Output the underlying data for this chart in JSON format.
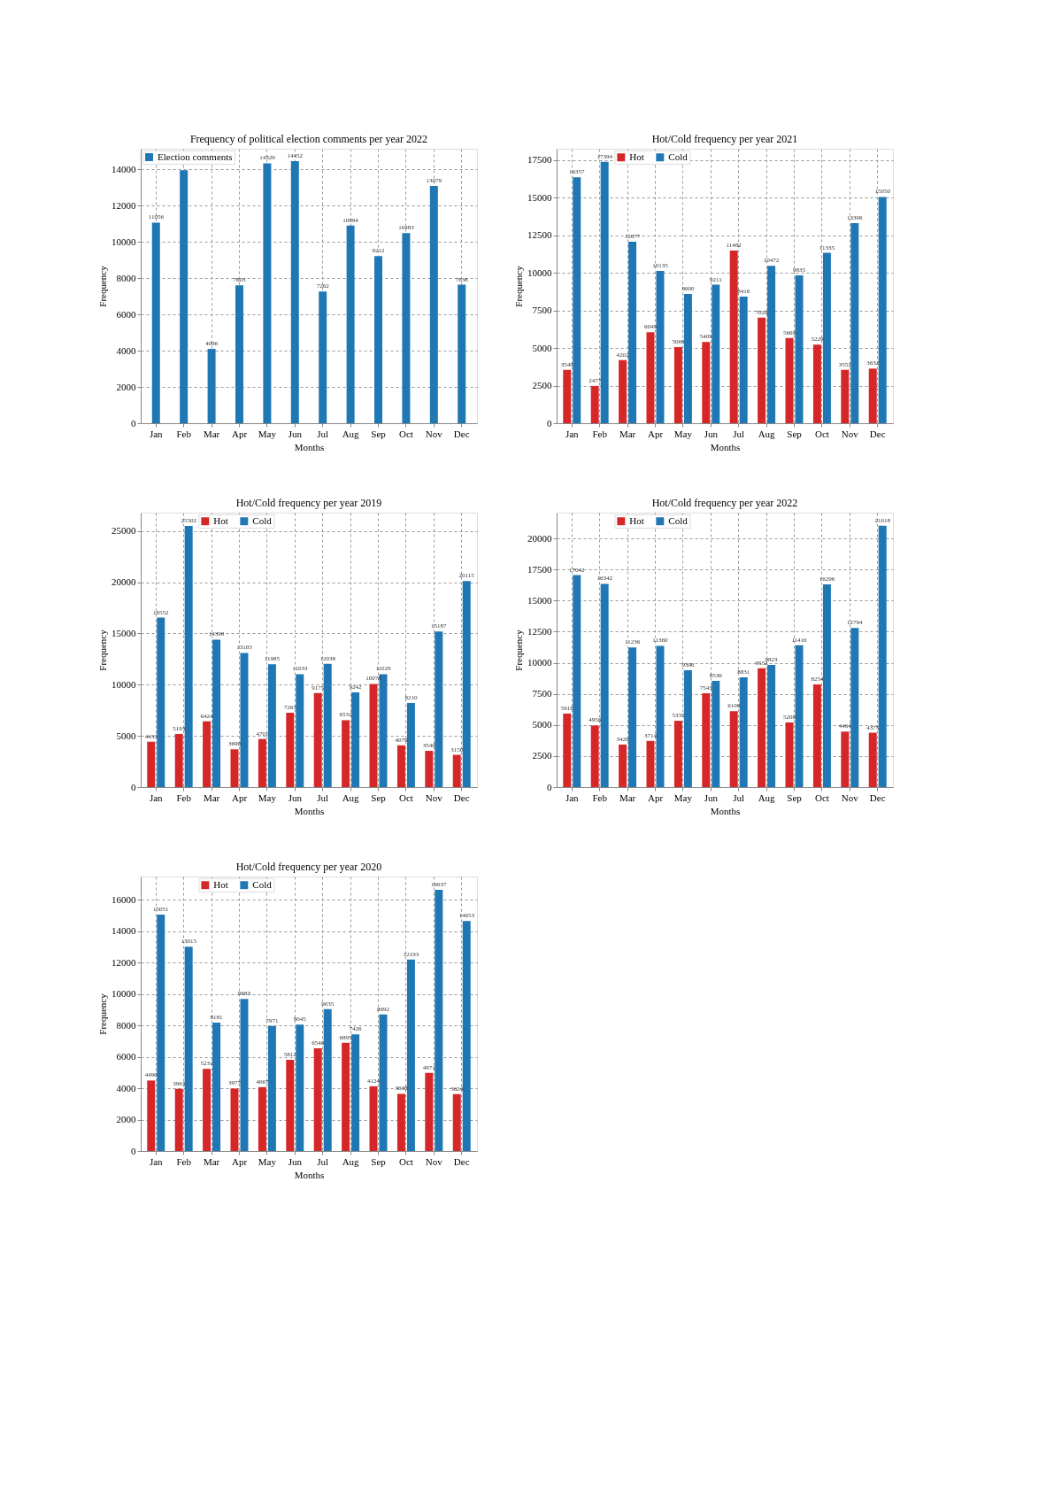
{
  "chart_data": [
    {
      "type": "bar",
      "title": "Frequency of political election comments per year 2022",
      "xlabel": "Months",
      "ylabel": "Frequency",
      "categories": [
        "Jan",
        "Feb",
        "Mar",
        "Apr",
        "May",
        "Jun",
        "Jul",
        "Aug",
        "Sep",
        "Oct",
        "Nov",
        "Dec"
      ],
      "series": [
        {
          "name": "Election comments",
          "color": "#1f77b4",
          "values": [
            11056,
            13950,
            4096,
            7603,
            14329,
            14452,
            7262,
            10894,
            9212,
            10483,
            13079,
            7638
          ],
          "value_labels": [
            "11056",
            null,
            "4096",
            "7603",
            "14329",
            "14452",
            "7262",
            "10894",
            "9212",
            "10483",
            "13079",
            "7638"
          ]
        }
      ],
      "ylim": [
        0,
        15130
      ],
      "yticks": [
        0,
        2000,
        4000,
        6000,
        8000,
        10000,
        12000,
        14000
      ],
      "grid": true,
      "legend": "top left"
    },
    {
      "type": "bar",
      "title": "Hot/Cold frequency per year 2021",
      "xlabel": "Months",
      "ylabel": "Frequency",
      "categories": [
        "Jan",
        "Feb",
        "Mar",
        "Apr",
        "May",
        "Jun",
        "Jul",
        "Aug",
        "Sep",
        "Oct",
        "Nov",
        "Dec"
      ],
      "series": [
        {
          "name": "Hot",
          "color": "#d62728",
          "values": [
            3549,
            2477,
            4202,
            6049,
            5069,
            5409,
            11482,
            7029,
            5669,
            5229,
            3552,
            3632
          ]
        },
        {
          "name": "Cold",
          "color": "#1f77b4",
          "values": [
            16357,
            17394,
            12077,
            10135,
            8600,
            9211,
            8416,
            10472,
            9835,
            11335,
            13306,
            15050
          ]
        }
      ],
      "ylim": [
        0,
        18260
      ],
      "yticks": [
        0,
        2500,
        5000,
        7500,
        10000,
        12500,
        15000,
        17500
      ],
      "grid": true,
      "legend": "top left",
      "data_labels": true
    },
    {
      "type": "bar",
      "title": "Hot/Cold frequency per year 2019",
      "xlabel": "Months",
      "ylabel": "Frequency",
      "categories": [
        "Jan",
        "Feb",
        "Mar",
        "Apr",
        "May",
        "Jun",
        "Jul",
        "Aug",
        "Sep",
        "Oct",
        "Nov",
        "Dec"
      ],
      "series": [
        {
          "name": "Hot",
          "color": "#d62728",
          "values": [
            4433,
            5193,
            6424,
            3690,
            4701,
            7263,
            9175,
            6531,
            10078,
            4079,
            3540,
            3150
          ]
        },
        {
          "name": "Cold",
          "color": "#1f77b4",
          "values": [
            16552,
            25502,
            14398,
            13103,
            11985,
            11033,
            12038,
            9242,
            11029,
            8210,
            15187,
            20115
          ]
        }
      ],
      "ylim": [
        0,
        26800
      ],
      "yticks": [
        0,
        5000,
        10000,
        15000,
        20000,
        25000
      ],
      "grid": true,
      "legend": "top left",
      "data_labels": true
    },
    {
      "type": "bar",
      "title": "Hot/Cold frequency per year 2022",
      "xlabel": "Months",
      "ylabel": "Frequency",
      "categories": [
        "Jan",
        "Feb",
        "Mar",
        "Apr",
        "May",
        "Jun",
        "Jul",
        "Aug",
        "Sep",
        "Oct",
        "Nov",
        "Dec"
      ],
      "series": [
        {
          "name": "Hot",
          "color": "#d62728",
          "values": [
            5916,
            4956,
            3420,
            3714,
            5335,
            7543,
            6100,
            9552,
            5200,
            8254,
            4464,
            4375
          ]
        },
        {
          "name": "Cold",
          "color": "#1f77b4",
          "values": [
            17042,
            16342,
            11236,
            11360,
            9396,
            8536,
            8831,
            9823,
            11416,
            16296,
            12794,
            21018
          ]
        }
      ],
      "ylim": [
        0,
        22070
      ],
      "yticks": [
        0,
        2500,
        5000,
        7500,
        10000,
        12500,
        15000,
        17500,
        20000
      ],
      "grid": true,
      "legend": "top left",
      "data_labels": true
    },
    {
      "type": "bar",
      "title": "Hot/Cold frequency per year 2020",
      "xlabel": "Months",
      "ylabel": "Frequency",
      "categories": [
        "Jan",
        "Feb",
        "Mar",
        "Apr",
        "May",
        "Jun",
        "Jul",
        "Aug",
        "Sep",
        "Oct",
        "Nov",
        "Dec"
      ],
      "series": [
        {
          "name": "Hot",
          "color": "#d62728",
          "values": [
            4490,
            3963,
            5231,
            3977,
            4067,
            5812,
            6540,
            6895,
            4124,
            3638,
            4971,
            3624
          ]
        },
        {
          "name": "Cold",
          "color": "#1f77b4",
          "values": [
            15051,
            13015,
            8181,
            9683,
            7971,
            8045,
            9035,
            7426,
            8692,
            12193,
            16637,
            14653
          ]
        }
      ],
      "ylim": [
        0,
        17480
      ],
      "yticks": [
        0,
        2000,
        4000,
        6000,
        8000,
        10000,
        12000,
        14000,
        16000
      ],
      "grid": true,
      "legend": "top left",
      "data_labels": true
    }
  ]
}
